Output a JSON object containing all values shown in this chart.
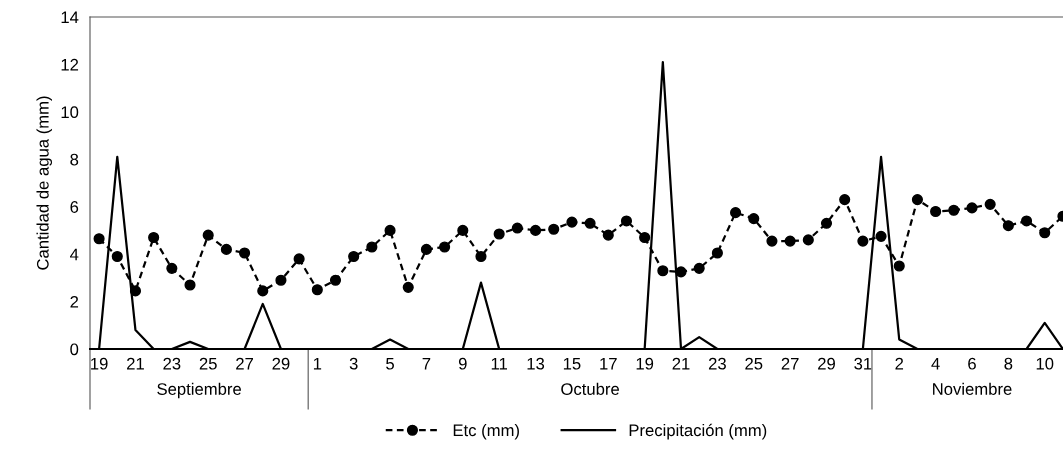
{
  "chart_data": {
    "type": "line",
    "ylabel": "Cantidad de agua (mm)",
    "categories": [
      "19",
      null,
      "21",
      null,
      "23",
      null,
      "25",
      null,
      "27",
      null,
      "29",
      null,
      "1",
      null,
      "3",
      null,
      "5",
      null,
      "7",
      null,
      "9",
      null,
      "11",
      null,
      "13",
      null,
      "15",
      null,
      "17",
      null,
      "19",
      null,
      "21",
      null,
      "23",
      null,
      "25",
      null,
      "27",
      null,
      "29",
      null,
      "31",
      null,
      "2",
      null,
      "4",
      null,
      "6",
      null,
      "8",
      null,
      "10",
      null
    ],
    "series": [
      {
        "name": "Etc (mm)",
        "color": "#000000",
        "marker": "circle",
        "line_style": "dashed",
        "values": [
          4.65,
          3.9,
          2.45,
          4.7,
          3.4,
          2.7,
          4.8,
          4.2,
          4.05,
          2.45,
          2.9,
          3.8,
          2.5,
          2.9,
          3.9,
          4.3,
          5.0,
          2.6,
          4.2,
          4.3,
          5.0,
          3.9,
          4.85,
          5.1,
          5.0,
          5.05,
          5.35,
          5.3,
          4.8,
          5.4,
          4.7,
          3.3,
          3.25,
          3.4,
          4.05,
          5.75,
          5.5,
          4.55,
          4.55,
          4.6,
          5.3,
          6.3,
          4.55,
          4.75,
          3.5,
          6.3,
          5.8,
          5.85,
          5.95,
          6.1,
          5.2,
          5.4,
          4.9,
          5.6
        ]
      },
      {
        "name": "Precipitación (mm)",
        "color": "#000000",
        "marker": "none",
        "line_style": "solid",
        "values": [
          0,
          8.1,
          0.8,
          0,
          0,
          0.3,
          0,
          0,
          0,
          1.9,
          0,
          0,
          0,
          0,
          0,
          0,
          0.4,
          0,
          0,
          0,
          0,
          2.8,
          0,
          0,
          0,
          0,
          0,
          0,
          0,
          0,
          0,
          12.1,
          0,
          0.5,
          0,
          0,
          0,
          0,
          0,
          0,
          0,
          0,
          0,
          8.1,
          0.4,
          0,
          0,
          0,
          0,
          0,
          0,
          0,
          1.1,
          0
        ]
      }
    ],
    "ylim": [
      0,
      14
    ],
    "yticks": [
      0,
      2,
      4,
      6,
      8,
      10,
      12,
      14
    ],
    "grid": false,
    "legend": "bottom",
    "annotations": [
      "Septiembre",
      "Octubre",
      "Noviembre"
    ]
  }
}
